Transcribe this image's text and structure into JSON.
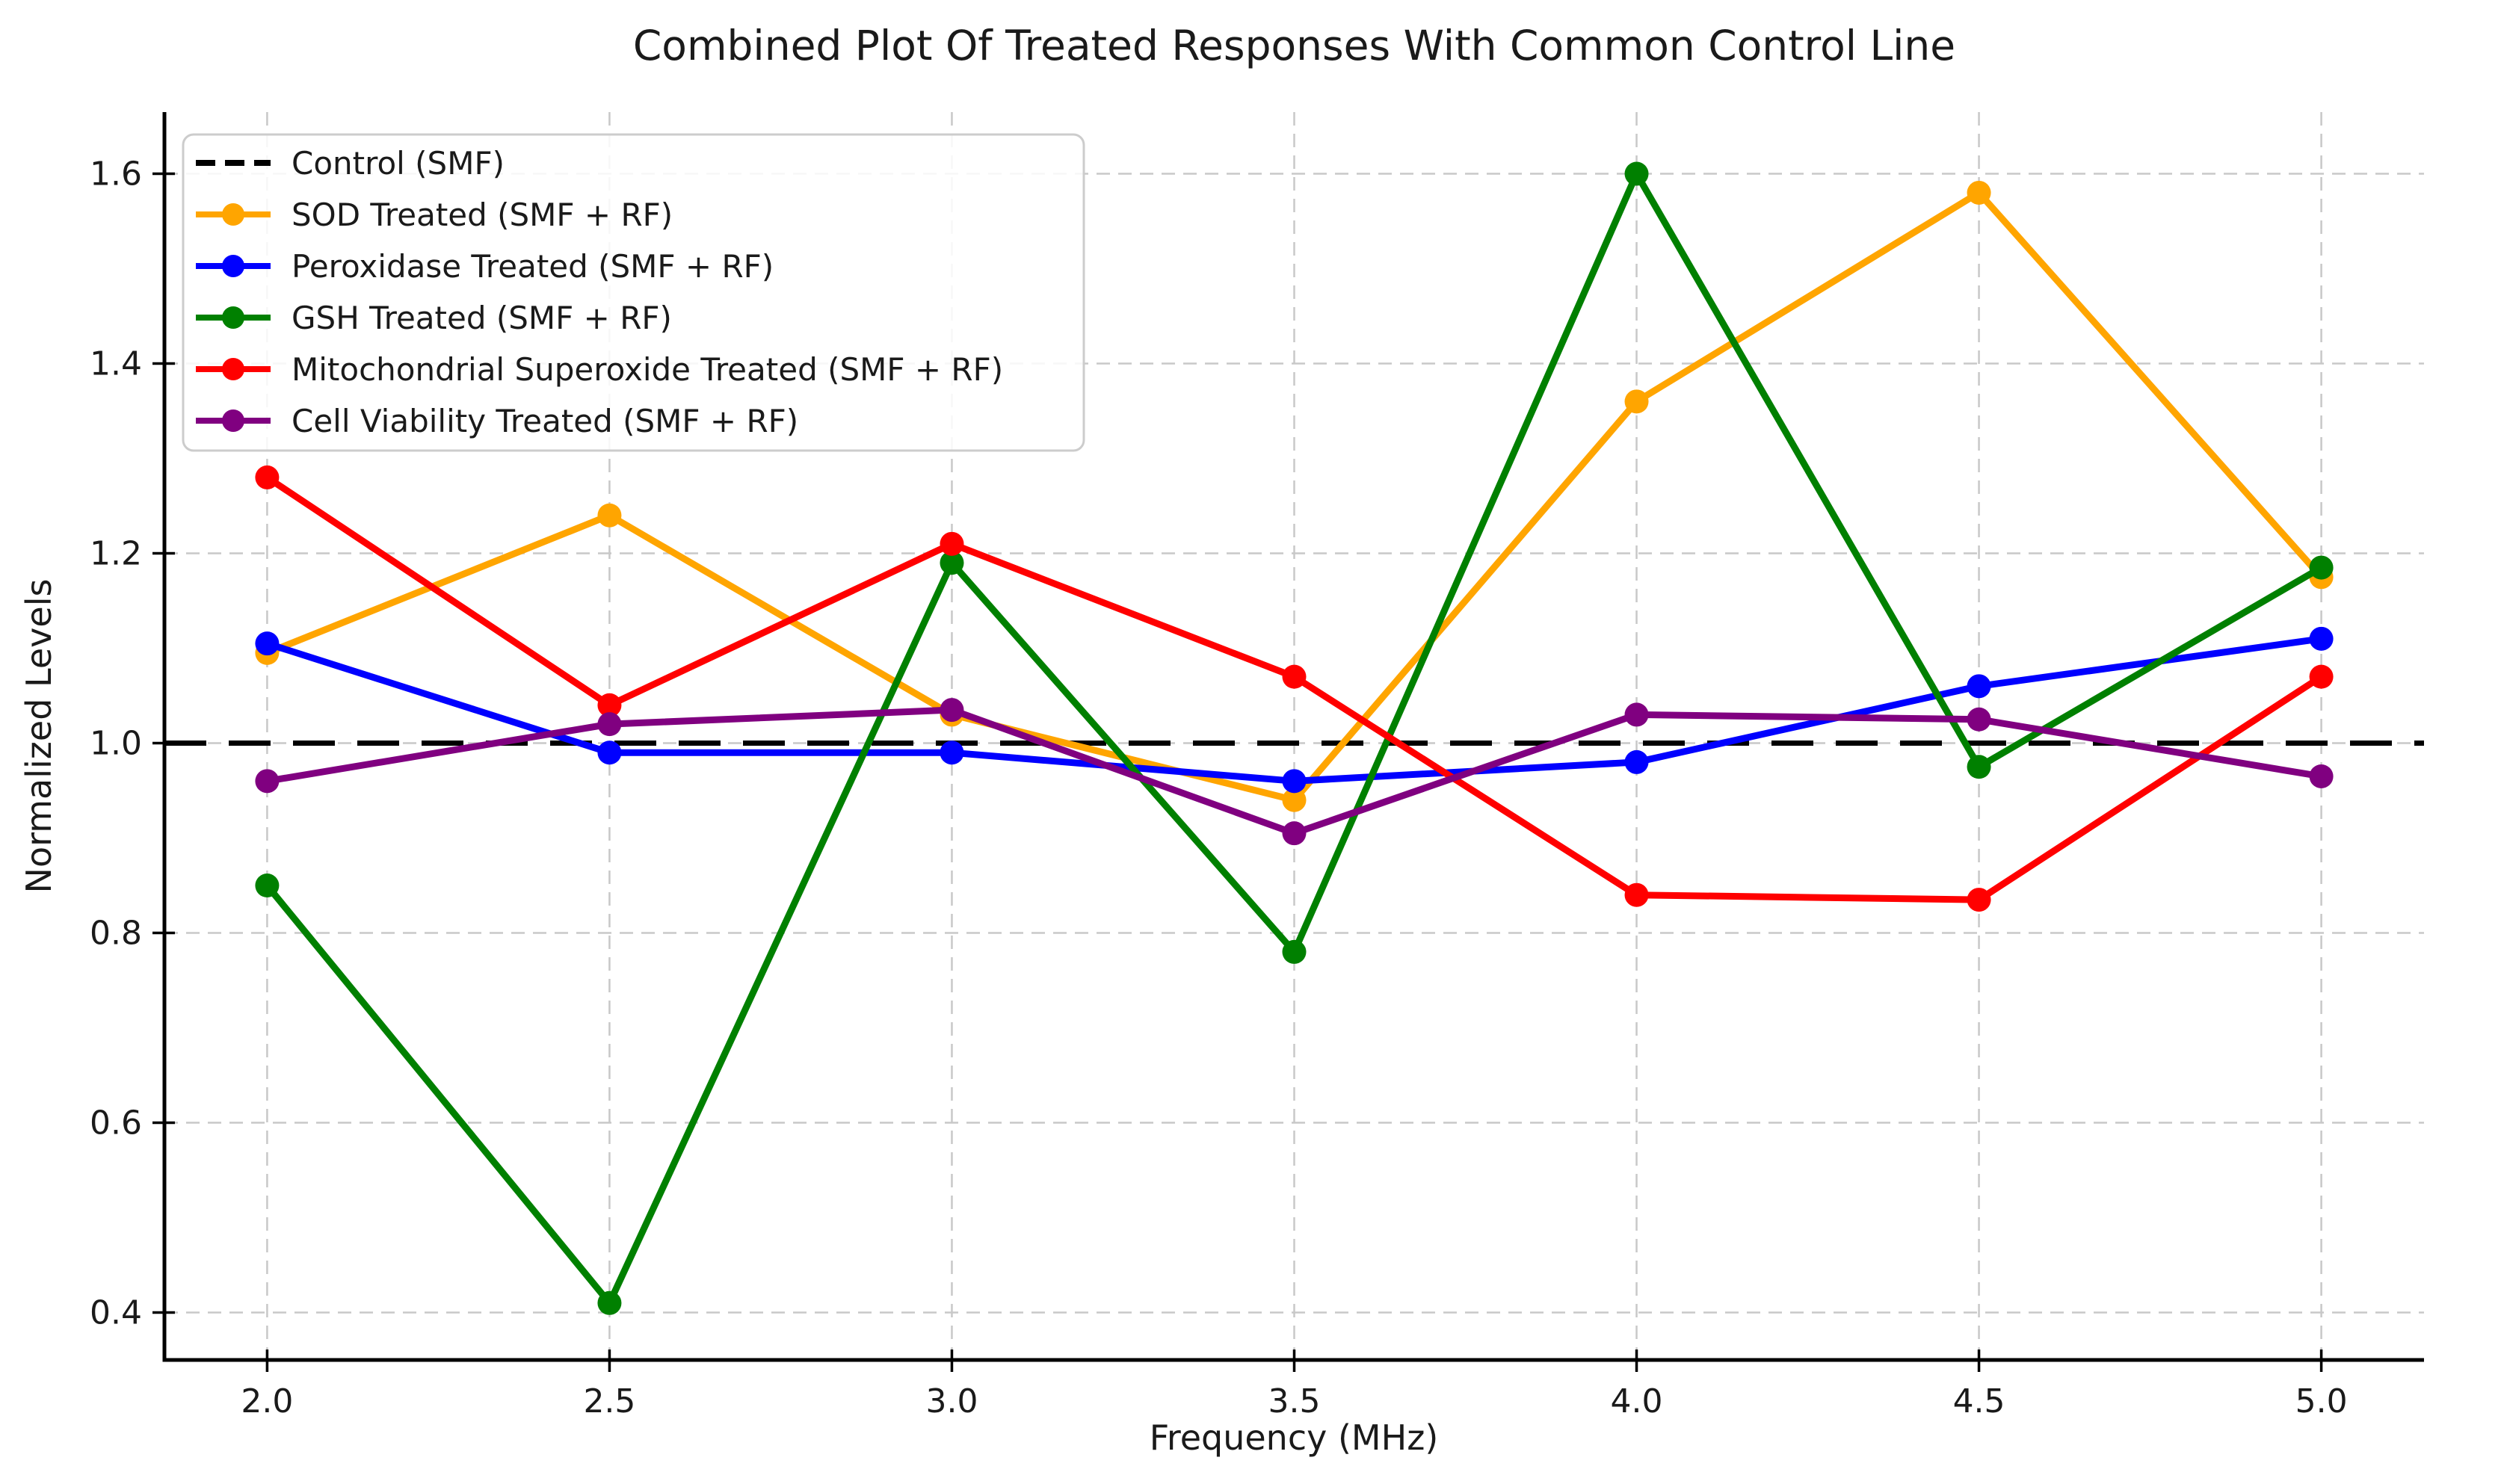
{
  "figure": {
    "background_color": "#FFFFFF"
  },
  "chart_data": {
    "type": "line",
    "title": "Combined Plot Of Treated Responses With Common Control Line",
    "xlabel": "Frequency (MHz)",
    "ylabel": "Normalized Levels",
    "x": [
      2.0,
      2.5,
      3.0,
      3.5,
      4.0,
      4.5,
      5.0
    ],
    "xticks": [
      2.0,
      2.5,
      3.0,
      3.5,
      4.0,
      4.5,
      5.0
    ],
    "yticks": [
      0.4,
      0.6,
      0.8,
      1.0,
      1.2,
      1.4,
      1.6
    ],
    "xlim": [
      1.85,
      5.15
    ],
    "ylim": [
      0.35,
      1.665
    ],
    "grid": true,
    "grid_color": "#C8C8C8",
    "legend_position": "upper-left",
    "control": {
      "label": "Control (SMF)",
      "value": 1.0,
      "color": "#000000",
      "linestyle": "dashed"
    },
    "series": [
      {
        "label": "SOD Treated (SMF + RF)",
        "color": "#FFA500",
        "values": [
          1.095,
          1.24,
          1.03,
          0.94,
          1.36,
          1.58,
          1.175
        ]
      },
      {
        "label": "Peroxidase Treated (SMF + RF)",
        "color": "#0000FF",
        "values": [
          1.105,
          0.99,
          0.99,
          0.96,
          0.98,
          1.06,
          1.11
        ]
      },
      {
        "label": "GSH Treated (SMF + RF)",
        "color": "#008000",
        "values": [
          0.85,
          0.41,
          1.19,
          0.78,
          1.6,
          0.975,
          1.185
        ]
      },
      {
        "label": "Mitochondrial Superoxide Treated (SMF + RF)",
        "color": "#FF0000",
        "values": [
          1.28,
          1.04,
          1.21,
          1.07,
          0.84,
          0.835,
          1.07
        ]
      },
      {
        "label": "Cell Viability Treated (SMF + RF)",
        "color": "#800080",
        "values": [
          0.96,
          1.02,
          1.035,
          0.905,
          1.03,
          1.025,
          0.965
        ]
      }
    ]
  }
}
